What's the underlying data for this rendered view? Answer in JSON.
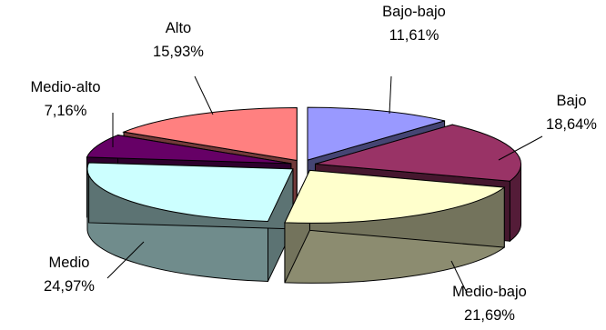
{
  "chart_data": {
    "type": "pie",
    "variant": "3d-exploded",
    "title": "",
    "legend": "none",
    "slices": [
      {
        "label": "Bajo-bajo",
        "value_label": "11,61%",
        "value": 11.61,
        "color": "#9999ff"
      },
      {
        "label": "Bajo",
        "value_label": "18,64%",
        "value": 18.64,
        "color": "#993366"
      },
      {
        "label": "Medio-bajo",
        "value_label": "21,69%",
        "value": 21.69,
        "color": "#ffffcc"
      },
      {
        "label": "Medio",
        "value_label": "24,97%",
        "value": 24.97,
        "color": "#ccffff"
      },
      {
        "label": "Medio-alto",
        "value_label": "7,16%",
        "value": 7.16,
        "color": "#660066"
      },
      {
        "label": "Alto",
        "value_label": "15,93%",
        "value": 15.93,
        "color": "#ff8080"
      }
    ]
  }
}
